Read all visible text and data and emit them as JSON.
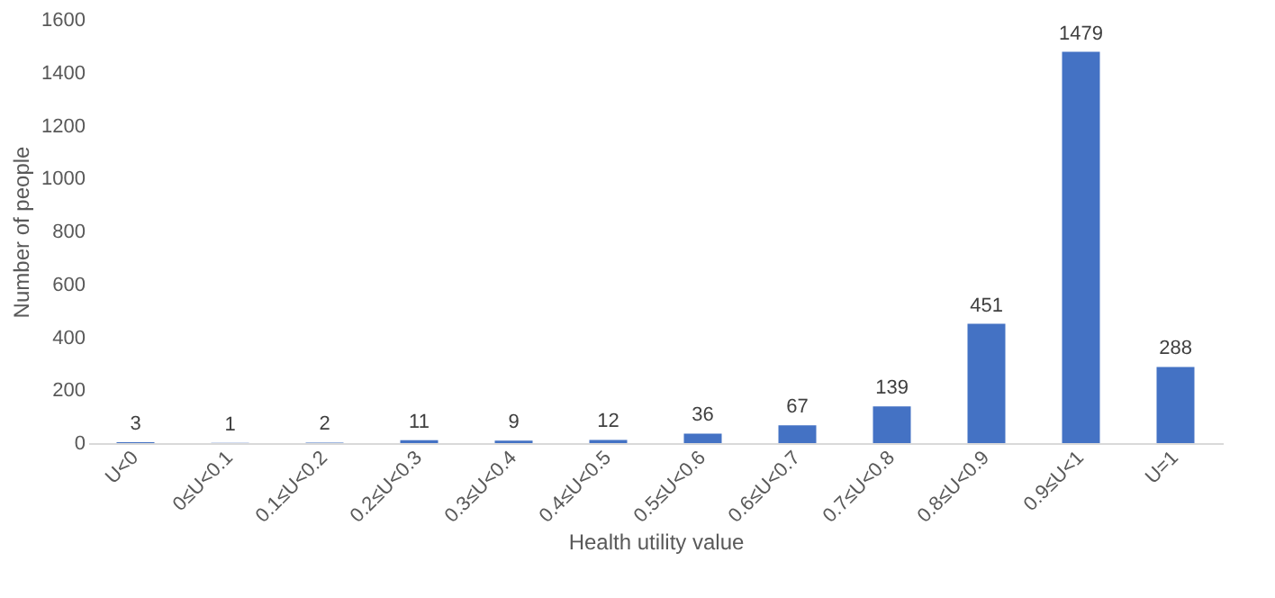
{
  "chart_data": {
    "type": "bar",
    "xlabel": "Health utility value",
    "ylabel": "Number of people",
    "categories": [
      "U<0",
      "0≤U<0.1",
      "0.1≤U<0.2",
      "0.2≤U<0.3",
      "0.3≤U<0.4",
      "0.4≤U<0.5",
      "0.5≤U<0.6",
      "0.6≤U<0.7",
      "0.7≤U<0.8",
      "0.8≤U<0.9",
      "0.9≤U<1",
      "U=1"
    ],
    "values": [
      3,
      1,
      2,
      11,
      9,
      12,
      36,
      67,
      139,
      451,
      1479,
      288
    ],
    "color": "#4472c4",
    "ylim": [
      0,
      1600
    ],
    "yticks": [
      0,
      200,
      400,
      600,
      800,
      1000,
      1200,
      1400,
      1600
    ],
    "grid": false,
    "data_labels": true
  }
}
